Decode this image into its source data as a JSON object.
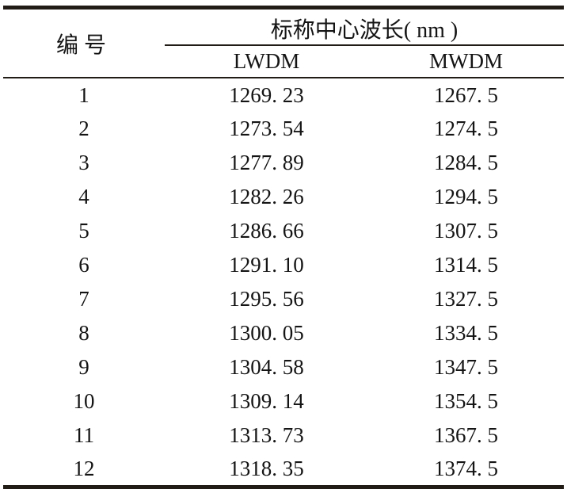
{
  "table": {
    "id_header": "编号",
    "group_header": "标称中心波长( nm )",
    "sub_headers": [
      "LWDM",
      "MWDM"
    ],
    "rows": [
      {
        "id": "1",
        "lwdm": "1269. 23",
        "mwdm": "1267. 5"
      },
      {
        "id": "2",
        "lwdm": "1273. 54",
        "mwdm": "1274. 5"
      },
      {
        "id": "3",
        "lwdm": "1277. 89",
        "mwdm": "1284. 5"
      },
      {
        "id": "4",
        "lwdm": "1282. 26",
        "mwdm": "1294. 5"
      },
      {
        "id": "5",
        "lwdm": "1286. 66",
        "mwdm": "1307. 5"
      },
      {
        "id": "6",
        "lwdm": "1291. 10",
        "mwdm": "1314. 5"
      },
      {
        "id": "7",
        "lwdm": "1295. 56",
        "mwdm": "1327. 5"
      },
      {
        "id": "8",
        "lwdm": "1300. 05",
        "mwdm": "1334. 5"
      },
      {
        "id": "9",
        "lwdm": "1304. 58",
        "mwdm": "1347. 5"
      },
      {
        "id": "10",
        "lwdm": "1309. 14",
        "mwdm": "1354. 5"
      },
      {
        "id": "11",
        "lwdm": "1313. 73",
        "mwdm": "1367. 5"
      },
      {
        "id": "12",
        "lwdm": "1318. 35",
        "mwdm": "1374. 5"
      }
    ]
  },
  "colors": {
    "rule": "#221c16",
    "text": "#141414",
    "background": "#ffffff"
  }
}
